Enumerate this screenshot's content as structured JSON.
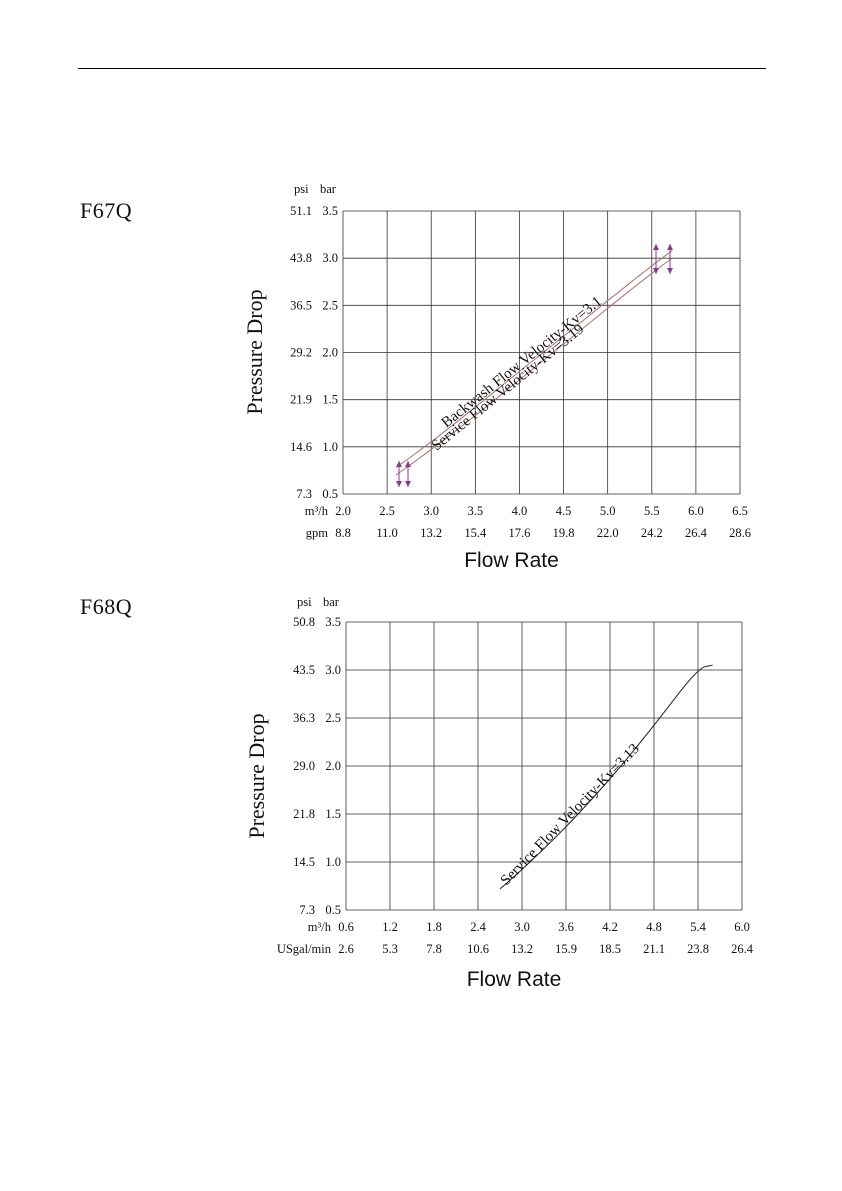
{
  "charts": [
    {
      "model": "F67Q",
      "chart_data": {
        "type": "line",
        "ylabel": "Pressure Drop",
        "xlabel": "Flow Rate",
        "y_units": [
          "psi",
          "bar"
        ],
        "y_psi_ticks": [
          "51.1",
          "43.8",
          "36.5",
          "29.2",
          "21.9",
          "14.6",
          "7.3"
        ],
        "y_bar_ticks": [
          "3.5",
          "3.0",
          "2.5",
          "2.0",
          "1.5",
          "1.0",
          "0.5"
        ],
        "x_unit_1": "m³/h",
        "x_unit_2": "gpm",
        "x_ticks_1": [
          "2.0",
          "2.5",
          "3.0",
          "3.5",
          "4.0",
          "4.5",
          "5.0",
          "5.5",
          "6.0",
          "6.5"
        ],
        "x_ticks_2": [
          "8.8",
          "11.0",
          "13.2",
          "15.4",
          "17.6",
          "19.8",
          "22.0",
          "24.2",
          "26.4",
          "28.6"
        ],
        "xlim": [
          2.0,
          6.5
        ],
        "ylim": [
          0.5,
          3.5
        ],
        "series": [
          {
            "name": "Backwash Flow Velocity-Kv=3.1",
            "x": [
              2.6,
              3.0,
              3.5,
              4.0,
              4.5,
              5.0,
              5.5,
              5.73
            ],
            "y": [
              0.78,
              1.05,
              1.42,
              1.8,
              2.17,
              2.55,
              2.92,
              3.08
            ]
          },
          {
            "name": "Service Flow Velocity-Kv=3.19",
            "x": [
              2.6,
              3.0,
              3.5,
              4.0,
              4.5,
              5.0,
              5.5,
              5.73
            ],
            "y": [
              0.7,
              0.97,
              1.33,
              1.71,
              2.09,
              2.47,
              2.84,
              3.0
            ]
          }
        ],
        "grid": true,
        "marker_color": "#8a3a8a",
        "curve_color": "#b07070"
      }
    },
    {
      "model": "F68Q",
      "chart_data": {
        "type": "line",
        "ylabel": "Pressure Drop",
        "xlabel": "Flow Rate",
        "y_units": [
          "psi",
          "bar"
        ],
        "y_psi_ticks": [
          "50.8",
          "43.5",
          "36.3",
          "29.0",
          "21.8",
          "14.5",
          "7.3"
        ],
        "y_bar_ticks": [
          "3.5",
          "3.0",
          "2.5",
          "2.0",
          "1.5",
          "1.0",
          "0.5"
        ],
        "x_unit_1": "m³/h",
        "x_unit_2": "USgal/min",
        "x_ticks_1": [
          "0.6",
          "1.2",
          "1.8",
          "2.4",
          "3.0",
          "3.6",
          "4.2",
          "4.8",
          "5.4",
          "6.0"
        ],
        "x_ticks_2": [
          "2.6",
          "5.3",
          "7.8",
          "10.6",
          "13.2",
          "15.9",
          "18.5",
          "21.1",
          "23.8",
          "26.4"
        ],
        "xlim": [
          0.6,
          6.0
        ],
        "ylim": [
          0.5,
          3.5
        ],
        "series": [
          {
            "name": "Service Flow Velocity-Kv=3.13",
            "x": [
              2.7,
              3.0,
              3.6,
              4.2,
              4.8,
              5.4,
              5.6
            ],
            "y": [
              0.72,
              0.92,
              1.36,
              1.86,
              2.42,
              3.02,
              3.05
            ]
          }
        ],
        "grid": true,
        "curve_color": "#222222"
      }
    }
  ]
}
